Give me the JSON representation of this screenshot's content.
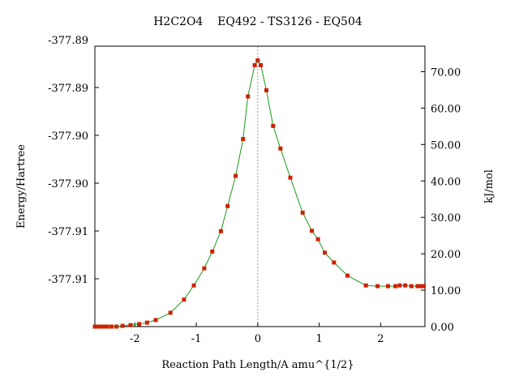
{
  "chart_data": {
    "type": "line",
    "title": "H2C2O4    EQ492 - TS3126 - EQ504",
    "xlabel": "Reaction Path Length/A amu^{1/2}",
    "ylabel_left": "Energy/Hartree",
    "ylabel_right": "kJ/mol",
    "xlim": [
      -2.65,
      2.72
    ],
    "ylim_right": [
      0,
      77
    ],
    "x_ticks": [
      -2,
      -1,
      0,
      1,
      2
    ],
    "x_tick_labels": [
      "-2",
      "-1",
      "0",
      "1",
      "2"
    ],
    "left_ticks_kj": [
      0,
      13.13,
      26.26,
      39.39,
      52.52,
      65.65,
      78.78
    ],
    "left_tick_labels": [
      "-377.91",
      "-377.91",
      "-377.90",
      "-377.90",
      "-377.89",
      "-377.89"
    ],
    "right_ticks": [
      0,
      10,
      20,
      30,
      40,
      50,
      60,
      70
    ],
    "right_tick_labels": [
      "0.00",
      "10.00",
      "20.00",
      "30.00",
      "40.00",
      "50.00",
      "60.00",
      "70.00"
    ],
    "vertical_reference_x": 0,
    "series": [
      {
        "x": [
          -2.65,
          -2.6,
          -2.55,
          -2.5,
          -2.45,
          -2.38,
          -2.3,
          -2.2,
          -2.07,
          -1.93,
          -1.8,
          -1.66,
          -1.42,
          -1.2,
          -1.04,
          -0.87,
          -0.74,
          -0.6,
          -0.49,
          -0.36,
          -0.24,
          -0.16,
          -0.05,
          0.0,
          0.05,
          0.14,
          0.25,
          0.37,
          0.53,
          0.73,
          0.88,
          0.98,
          1.09,
          1.24,
          1.46,
          1.76,
          1.95,
          2.12,
          2.24,
          2.31,
          2.4,
          2.5,
          2.6,
          2.65,
          2.7
        ],
        "y": [
          0.0,
          0.0,
          0.0,
          0.0,
          0.0,
          0.0,
          0.0,
          0.2,
          0.4,
          0.7,
          1.1,
          1.8,
          3.8,
          7.4,
          11.3,
          16.0,
          20.6,
          26.2,
          33.1,
          41.4,
          51.5,
          63.2,
          71.8,
          73.1,
          71.8,
          64.9,
          55.1,
          48.9,
          40.9,
          31.3,
          26.3,
          24.0,
          20.3,
          17.6,
          14.0,
          11.3,
          11.1,
          11.1,
          11.1,
          11.3,
          11.3,
          11.1,
          11.1,
          11.1,
          11.1
        ]
      }
    ]
  }
}
